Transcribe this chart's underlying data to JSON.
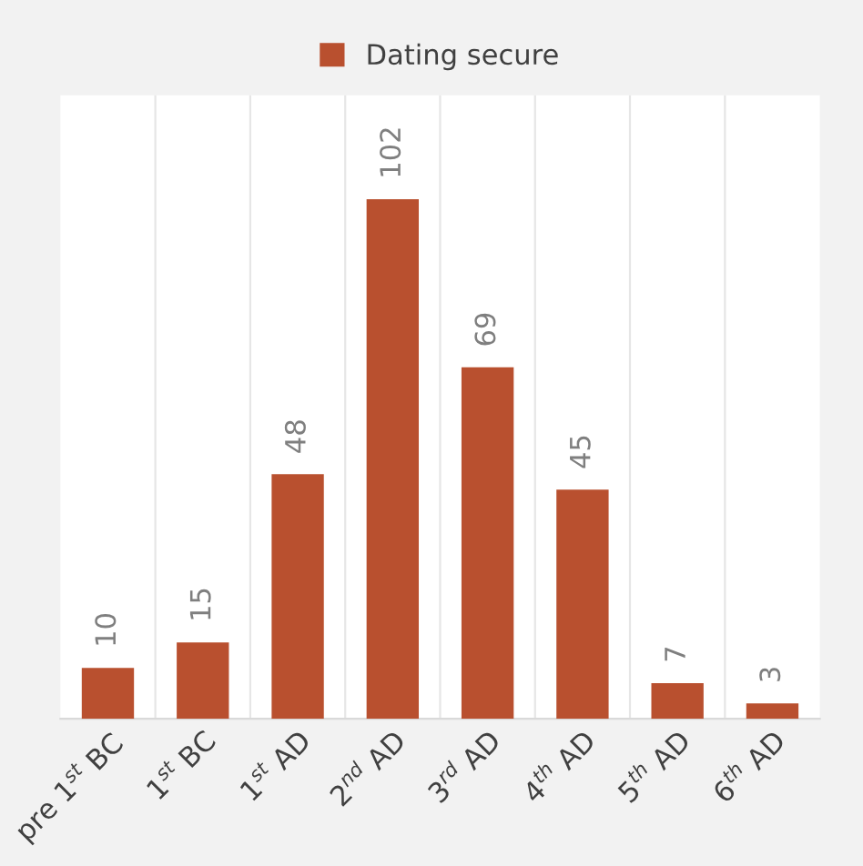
{
  "chart_data": {
    "type": "bar",
    "categories": [
      "pre 1$^{st}$ BC",
      "1$^{st}$ BC",
      "1$^{st}$ AD",
      "2$^{nd}$ AD",
      "3$^{rd}$ AD",
      "4$^{th}$ AD",
      "5$^{th}$ AD",
      "6$^{th}$ AD"
    ],
    "series": [
      {
        "name": "Dating secure",
        "color": "#b9502f",
        "values": [
          10,
          15,
          48,
          102,
          69,
          45,
          7,
          3
        ]
      }
    ],
    "data_labels": true,
    "grid": "x",
    "legend": "top",
    "tick_labels": "x"
  }
}
